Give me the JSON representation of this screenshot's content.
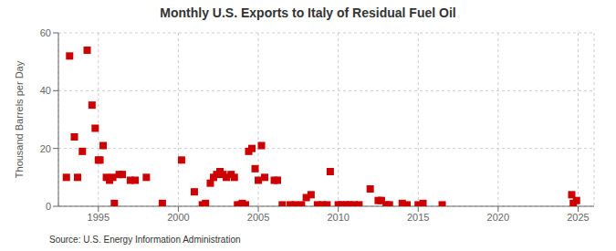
{
  "chart_data": {
    "type": "scatter",
    "title": "Monthly U.S. Exports to Italy of Residual Fuel Oil",
    "y_label": "Thousand Barrels per Day",
    "annotation": "Source: U.S. Energy Information Administration",
    "color": "#cc0000",
    "marker": "square",
    "grid": true,
    "xlim": [
      1992.5,
      2026
    ],
    "ylim": [
      0,
      60
    ],
    "xticks": [
      1995,
      2000,
      2005,
      2010,
      2015,
      2020,
      2025
    ],
    "yticks": [
      0,
      20,
      40,
      60
    ],
    "x": [
      1993.0,
      1993.2,
      1993.5,
      1993.7,
      1994.0,
      1994.3,
      1994.6,
      1994.8,
      1995.0,
      1995.1,
      1995.3,
      1995.5,
      1995.7,
      1995.9,
      1996.0,
      1996.3,
      1996.5,
      1997.0,
      1997.3,
      1998.0,
      1999.0,
      2000.2,
      2001.0,
      2001.5,
      2001.7,
      2002.0,
      2002.2,
      2002.4,
      2002.6,
      2002.8,
      2003.0,
      2003.3,
      2003.5,
      2003.7,
      2003.9,
      2004.0,
      2004.2,
      2004.4,
      2004.6,
      2004.8,
      2005.0,
      2005.2,
      2005.4,
      2006.0,
      2006.2,
      2006.5,
      2007.0,
      2007.3,
      2007.7,
      2008.0,
      2008.3,
      2008.7,
      2009.0,
      2009.3,
      2009.5,
      2010.0,
      2010.2,
      2010.5,
      2010.7,
      2011.0,
      2011.3,
      2012.0,
      2012.5,
      2012.7,
      2013.0,
      2013.2,
      2014.0,
      2014.3,
      2015.0,
      2015.3,
      2016.5,
      2024.6,
      2024.7,
      2024.9
    ],
    "values": [
      10,
      52,
      24,
      10,
      19,
      54,
      35,
      27,
      16,
      16,
      21,
      10,
      9,
      10,
      1,
      11,
      11,
      9,
      9,
      10,
      1,
      16,
      5,
      0.5,
      1,
      8,
      10,
      11,
      12,
      11,
      10,
      11,
      10,
      0.5,
      0.5,
      1,
      0.5,
      19,
      20,
      13,
      9,
      21,
      10,
      9,
      9,
      0.5,
      0.5,
      0.5,
      0.5,
      3,
      4,
      0.5,
      0.5,
      0.5,
      12,
      0.5,
      0.5,
      0.5,
      0.5,
      0.5,
      0.5,
      6,
      2,
      2,
      0.5,
      0.5,
      1,
      0.5,
      0.5,
      1,
      0.5,
      4,
      1,
      2
    ]
  }
}
